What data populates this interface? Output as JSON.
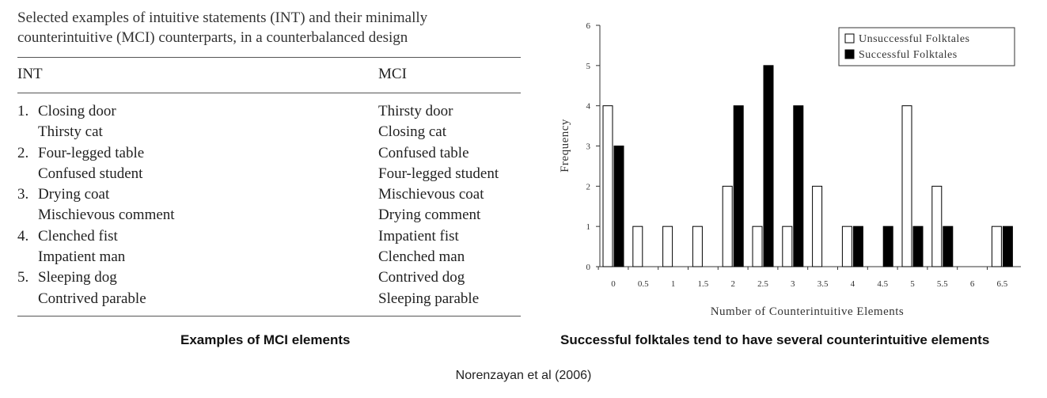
{
  "table": {
    "caption_line1": "Selected examples of intuitive statements (INT) and their minimally",
    "caption_line2": "counterintuitive (MCI) counterparts, in a counterbalanced design",
    "headers": [
      "INT",
      "MCI"
    ],
    "rows": [
      {
        "num": "1.",
        "int": "Closing door",
        "mci": "Thirsty door"
      },
      {
        "num": "",
        "int": "Thirsty cat",
        "mci": "Closing cat"
      },
      {
        "num": "2.",
        "int": "Four-legged table",
        "mci": "Confused table"
      },
      {
        "num": "",
        "int": "Confused student",
        "mci": "Four-legged student"
      },
      {
        "num": "3.",
        "int": "Drying coat",
        "mci": "Mischievous coat"
      },
      {
        "num": "",
        "int": "Mischievous comment",
        "mci": "Drying comment"
      },
      {
        "num": "4.",
        "int": "Clenched fist",
        "mci": "Impatient fist"
      },
      {
        "num": "",
        "int": "Impatient man",
        "mci": "Clenched man"
      },
      {
        "num": "5.",
        "int": "Sleeping dog",
        "mci": "Contrived dog"
      },
      {
        "num": "",
        "int": "Contrived parable",
        "mci": "Sleeping parable"
      }
    ]
  },
  "captions": {
    "left": "Examples of MCI elements",
    "right": "Successful folktales tend to have several counterintuitive elements",
    "credit": "Norenzayan et al (2006)"
  },
  "chart_data": {
    "type": "bar",
    "title": "",
    "xlabel": "Number of Counterintuitive Elements",
    "ylabel": "Frequency",
    "ylim": [
      0,
      6
    ],
    "yticks": [
      "0",
      "1",
      "2",
      "3",
      "4",
      "5",
      "6"
    ],
    "categories": [
      "0",
      "0.5",
      "1",
      "1.5",
      "2",
      "2.5",
      "3",
      "3.5",
      "4",
      "4.5",
      "5",
      "5.5",
      "6",
      "6.5"
    ],
    "series": [
      {
        "name": "Unsuccessful Folktales",
        "color": "#ffffff",
        "values": [
          4,
          1,
          1,
          1,
          2,
          1,
          1,
          2,
          1,
          0,
          4,
          2,
          0,
          1
        ]
      },
      {
        "name": "Successful Folktales",
        "color": "#000000",
        "values": [
          3,
          0,
          0,
          0,
          4,
          5,
          4,
          0,
          1,
          1,
          1,
          1,
          0,
          1
        ]
      }
    ],
    "legend_position": "top-right"
  }
}
